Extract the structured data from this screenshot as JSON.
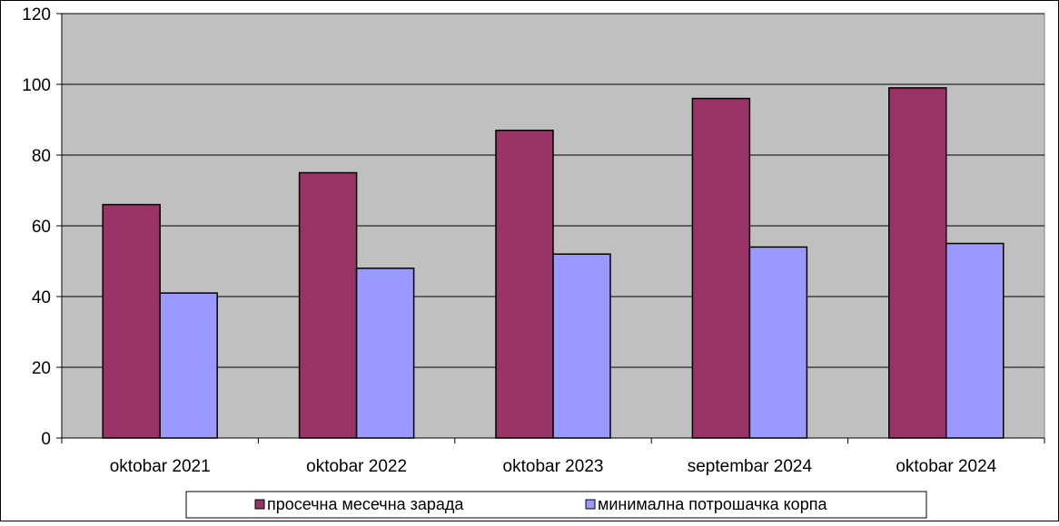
{
  "chart_data": {
    "type": "bar",
    "title": "",
    "xlabel": "",
    "ylabel": "",
    "categories": [
      "oktobar 2021",
      "oktobar 2022",
      "oktobar 2023",
      "septembar 2024",
      "oktobar 2024"
    ],
    "series": [
      {
        "name": "просечна месечна зарада",
        "values": [
          66,
          75,
          87,
          96,
          99
        ],
        "color": "#993366"
      },
      {
        "name": "минимална потрошачка корпа",
        "values": [
          41,
          48,
          52,
          54,
          55
        ],
        "color": "#9999ff"
      }
    ],
    "ylim": [
      0,
      120
    ],
    "yticks": [
      0,
      20,
      40,
      60,
      80,
      100,
      120
    ],
    "grid": true,
    "plot_background": "#c0c0c0",
    "legend_position": "bottom"
  }
}
